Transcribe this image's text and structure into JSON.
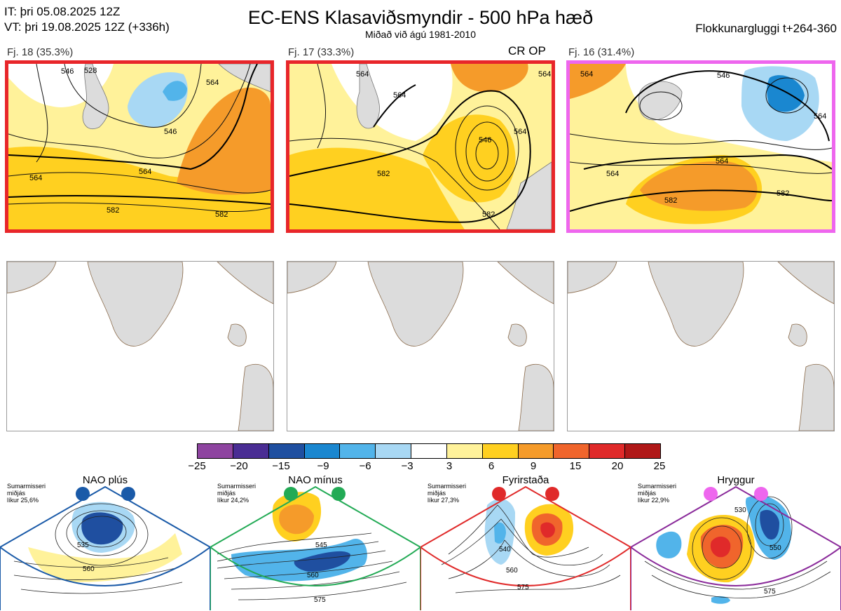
{
  "header": {
    "init_time": "IT: þri 05.08.2025 12Z",
    "valid_time": "VT: þri 19.08.2025 12Z  (+336h)",
    "title": "EC-ENS Klasaviðsmyndir - 500 hPa hæð",
    "subtitle": "Miðað við ágú 1981-2010",
    "window": "Flokkunargluggi t+264-360"
  },
  "clusters": [
    {
      "label": "Fj. 18 (35.3%)",
      "tag": "",
      "frame_color": "#e8262a",
      "contours": [
        "528",
        "546",
        "564",
        "546",
        "564",
        "582",
        "582",
        "564"
      ]
    },
    {
      "label": "Fj. 17 (33.3%)",
      "tag": "CR OP",
      "frame_color": "#e8262a",
      "contours": [
        "564",
        "564",
        "546",
        "564",
        "582",
        "582",
        "564"
      ]
    },
    {
      "label": "Fj. 16 (31.4%)",
      "tag": "",
      "frame_color": "#ee66ee",
      "contours": [
        "546",
        "564",
        "564",
        "564",
        "582",
        "582",
        "564"
      ]
    }
  ],
  "colorbar": {
    "colors": [
      "#8e44a0",
      "#4a2d94",
      "#1f4fa0",
      "#1a87d0",
      "#52b4ea",
      "#a8d8f4",
      "#ffffff",
      "#fff29a",
      "#ffd020",
      "#f59b2a",
      "#f0652c",
      "#e02a2a",
      "#b01818"
    ],
    "ticks": [
      "−25",
      "−20",
      "−15",
      "−9",
      "−6",
      "−3",
      "3",
      "6",
      "9",
      "15",
      "20",
      "25"
    ]
  },
  "regimes": [
    {
      "name": "NAO plús",
      "meta": [
        "Sumarmisseri",
        "miðjás",
        "líkur 25,6%"
      ],
      "marker_color": "#1a5aa8",
      "frame_color": "#1a5aa8",
      "contours": [
        "535",
        "560"
      ]
    },
    {
      "name": "NAO mínus",
      "meta": [
        "Sumarmisseri",
        "miðjás",
        "líkur 24,2%"
      ],
      "marker_color": "#22aa55",
      "frame_color": "#22aa55",
      "contours": [
        "545",
        "560",
        "575"
      ]
    },
    {
      "name": "Fyrirstaða",
      "meta": [
        "Sumarmisseri",
        "miðjás",
        "líkur 27,3%"
      ],
      "marker_color": "#e02a2a",
      "frame_color": "#e02a2a",
      "contours": [
        "540",
        "560",
        "575"
      ]
    },
    {
      "name": "Hryggur",
      "meta": [
        "Sumarmisseri",
        "miðjás",
        "líkur 22,9%"
      ],
      "marker_color": "#ee66ee",
      "frame_color": "#8a2a9a",
      "contours": [
        "530",
        "550",
        "575"
      ]
    }
  ]
}
